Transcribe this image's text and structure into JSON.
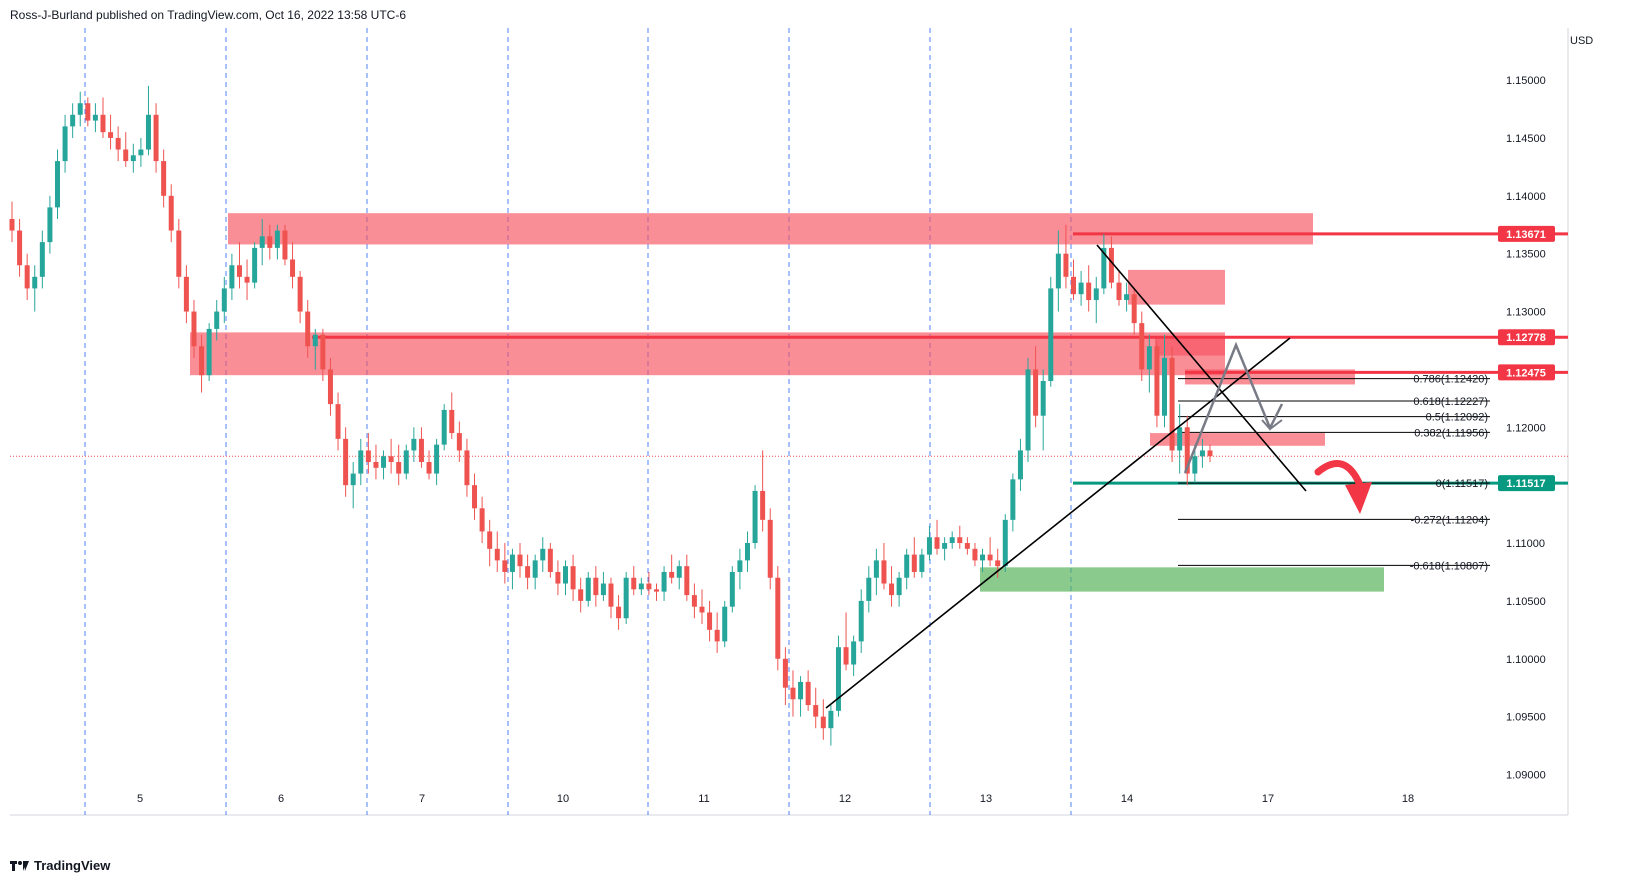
{
  "header": {
    "text": "Ross-J-Burland published on TradingView.com, Oct 16, 2022 13:58 UTC-6"
  },
  "footer": {
    "brand": "TradingView"
  },
  "colors": {
    "up": "#26a69a",
    "down": "#ef5350",
    "resistance": "#f23645",
    "resistance_zone": "#f7525f",
    "support": "#089981",
    "support_zone": "#4caf50",
    "grid": "#2962ff",
    "line": "#000000",
    "projection": "#787b86",
    "arrow": "#f23645"
  },
  "chart_data": {
    "type": "candlestick",
    "symbol_currency": "USD",
    "price_axis": {
      "ticks": [
        "1.09000",
        "1.09500",
        "1.10000",
        "1.10500",
        "1.11000",
        "1.11500",
        "1.12000",
        "1.12500",
        "1.13000",
        "1.13500",
        "1.14000",
        "1.14500",
        "1.15000"
      ],
      "min": 1.0865,
      "max": 1.1545
    },
    "time_axis": {
      "ticks": [
        "5",
        "6",
        "7",
        "10",
        "11",
        "12",
        "13",
        "14",
        "17",
        "18"
      ]
    },
    "session_separators": 10,
    "price_tags": [
      {
        "label": "1.13671",
        "value": 1.13671,
        "color": "#f23645"
      },
      {
        "label": "1.12778",
        "value": 1.12778,
        "color": "#f23645"
      },
      {
        "label": "1.12475",
        "value": 1.12475,
        "color": "#f23645"
      },
      {
        "label": "1.11517",
        "value": 1.11517,
        "color": "#089981"
      }
    ],
    "fibonacci": [
      {
        "label": "0.786(1.12420)",
        "value": 1.1242
      },
      {
        "label": "0.618(1.12227)",
        "value": 1.12227
      },
      {
        "label": "0.5(1.12092)",
        "value": 1.12092
      },
      {
        "label": "0.382(1.11956)",
        "value": 1.11956
      },
      {
        "label": "0(1.11517)",
        "value": 1.11517
      },
      {
        "label": "-0.272(1.11204)",
        "value": 1.11204
      },
      {
        "label": "-0.618(1.10807)",
        "value": 1.10807
      }
    ],
    "last_price": 1.1175,
    "candles": [
      [
        1.138,
        1.1395,
        1.136,
        1.137
      ],
      [
        1.137,
        1.138,
        1.133,
        1.134
      ],
      [
        1.134,
        1.135,
        1.131,
        1.132
      ],
      [
        1.132,
        1.134,
        1.13,
        1.133
      ],
      [
        1.133,
        1.137,
        1.132,
        1.136
      ],
      [
        1.136,
        1.14,
        1.135,
        1.139
      ],
      [
        1.139,
        1.144,
        1.138,
        1.143
      ],
      [
        1.143,
        1.147,
        1.142,
        1.146
      ],
      [
        1.146,
        1.148,
        1.145,
        1.147
      ],
      [
        1.147,
        1.149,
        1.146,
        1.148
      ],
      [
        1.148,
        1.1485,
        1.146,
        1.1465
      ],
      [
        1.1465,
        1.148,
        1.1455,
        1.147
      ],
      [
        1.147,
        1.1485,
        1.145,
        1.1455
      ],
      [
        1.1455,
        1.147,
        1.144,
        1.145
      ],
      [
        1.145,
        1.146,
        1.143,
        1.144
      ],
      [
        1.144,
        1.1455,
        1.1425,
        1.143
      ],
      [
        1.143,
        1.1445,
        1.142,
        1.1435
      ],
      [
        1.1435,
        1.145,
        1.1425,
        1.144
      ],
      [
        1.144,
        1.1495,
        1.1435,
        1.147
      ],
      [
        1.147,
        1.148,
        1.142,
        1.143
      ],
      [
        1.143,
        1.144,
        1.139,
        1.14
      ],
      [
        1.14,
        1.141,
        1.136,
        1.137
      ],
      [
        1.137,
        1.138,
        1.132,
        1.133
      ],
      [
        1.133,
        1.134,
        1.129,
        1.13
      ],
      [
        1.13,
        1.131,
        1.126,
        1.127
      ],
      [
        1.127,
        1.128,
        1.123,
        1.1245
      ],
      [
        1.1245,
        1.129,
        1.124,
        1.1285
      ],
      [
        1.1285,
        1.131,
        1.1275,
        1.13
      ],
      [
        1.13,
        1.133,
        1.129,
        1.132
      ],
      [
        1.132,
        1.135,
        1.131,
        1.134
      ],
      [
        1.134,
        1.136,
        1.132,
        1.133
      ],
      [
        1.133,
        1.1345,
        1.131,
        1.1325
      ],
      [
        1.1325,
        1.136,
        1.132,
        1.1355
      ],
      [
        1.1355,
        1.138,
        1.134,
        1.1365
      ],
      [
        1.1365,
        1.1375,
        1.1345,
        1.1355
      ],
      [
        1.1355,
        1.1375,
        1.1345,
        1.137
      ],
      [
        1.137,
        1.1375,
        1.134,
        1.1345
      ],
      [
        1.1345,
        1.136,
        1.132,
        1.133
      ],
      [
        1.133,
        1.1335,
        1.129,
        1.13
      ],
      [
        1.13,
        1.131,
        1.126,
        1.127
      ],
      [
        1.127,
        1.1285,
        1.125,
        1.128
      ],
      [
        1.128,
        1.1285,
        1.124,
        1.125
      ],
      [
        1.125,
        1.126,
        1.121,
        1.122
      ],
      [
        1.122,
        1.123,
        1.118,
        1.119
      ],
      [
        1.119,
        1.12,
        1.114,
        1.115
      ],
      [
        1.115,
        1.117,
        1.113,
        1.116
      ],
      [
        1.116,
        1.119,
        1.115,
        1.118
      ],
      [
        1.118,
        1.1195,
        1.116,
        1.117
      ],
      [
        1.117,
        1.1185,
        1.1155,
        1.1165
      ],
      [
        1.1165,
        1.118,
        1.1155,
        1.1175
      ],
      [
        1.1175,
        1.119,
        1.116,
        1.117
      ],
      [
        1.117,
        1.1185,
        1.115,
        1.116
      ],
      [
        1.116,
        1.1185,
        1.1155,
        1.118
      ],
      [
        1.118,
        1.12,
        1.117,
        1.119
      ],
      [
        1.119,
        1.12,
        1.1165,
        1.117
      ],
      [
        1.117,
        1.118,
        1.1155,
        1.116
      ],
      [
        1.116,
        1.119,
        1.115,
        1.1185
      ],
      [
        1.1185,
        1.122,
        1.118,
        1.1215
      ],
      [
        1.1215,
        1.123,
        1.119,
        1.1195
      ],
      [
        1.1195,
        1.1205,
        1.117,
        1.118
      ],
      [
        1.118,
        1.119,
        1.114,
        1.115
      ],
      [
        1.115,
        1.116,
        1.112,
        1.113
      ],
      [
        1.113,
        1.114,
        1.11,
        1.111
      ],
      [
        1.111,
        1.112,
        1.108,
        1.1095
      ],
      [
        1.1095,
        1.111,
        1.1075,
        1.1085
      ],
      [
        1.1085,
        1.11,
        1.1065,
        1.1075
      ],
      [
        1.1075,
        1.1095,
        1.106,
        1.109
      ],
      [
        1.109,
        1.11,
        1.107,
        1.108
      ],
      [
        1.108,
        1.109,
        1.106,
        1.107
      ],
      [
        1.107,
        1.109,
        1.106,
        1.1085
      ],
      [
        1.1085,
        1.1105,
        1.1075,
        1.1095
      ],
      [
        1.1095,
        1.11,
        1.107,
        1.1075
      ],
      [
        1.1075,
        1.1085,
        1.1055,
        1.1065
      ],
      [
        1.1065,
        1.1085,
        1.1055,
        1.108
      ],
      [
        1.108,
        1.109,
        1.105,
        1.106
      ],
      [
        1.106,
        1.107,
        1.104,
        1.105
      ],
      [
        1.105,
        1.1075,
        1.1045,
        1.107
      ],
      [
        1.107,
        1.108,
        1.1045,
        1.1055
      ],
      [
        1.1055,
        1.1075,
        1.105,
        1.1065
      ],
      [
        1.1065,
        1.107,
        1.1035,
        1.1045
      ],
      [
        1.1045,
        1.1055,
        1.1025,
        1.1035
      ],
      [
        1.1035,
        1.1075,
        1.103,
        1.107
      ],
      [
        1.107,
        1.108,
        1.1055,
        1.106
      ],
      [
        1.106,
        1.107,
        1.1055,
        1.1065
      ],
      [
        1.1065,
        1.1075,
        1.1055,
        1.106
      ],
      [
        1.106,
        1.1065,
        1.105,
        1.1058
      ],
      [
        1.1058,
        1.108,
        1.105,
        1.1075
      ],
      [
        1.1075,
        1.109,
        1.1065,
        1.107
      ],
      [
        1.107,
        1.1085,
        1.106,
        1.108
      ],
      [
        1.108,
        1.109,
        1.105,
        1.1055
      ],
      [
        1.1055,
        1.1065,
        1.1035,
        1.1045
      ],
      [
        1.1045,
        1.106,
        1.103,
        1.104
      ],
      [
        1.104,
        1.105,
        1.1015,
        1.1025
      ],
      [
        1.1025,
        1.104,
        1.1005,
        1.1015
      ],
      [
        1.1015,
        1.105,
        1.101,
        1.1045
      ],
      [
        1.1045,
        1.108,
        1.104,
        1.1075
      ],
      [
        1.1075,
        1.1095,
        1.106,
        1.1085
      ],
      [
        1.1085,
        1.111,
        1.1075,
        1.11
      ],
      [
        1.11,
        1.115,
        1.1095,
        1.1145
      ],
      [
        1.1145,
        1.118,
        1.111,
        1.112
      ],
      [
        1.112,
        1.113,
        1.106,
        1.107
      ],
      [
        1.107,
        1.108,
        1.099,
        1.1
      ],
      [
        1.1,
        1.101,
        1.096,
        1.0975
      ],
      [
        1.0975,
        1.099,
        1.095,
        1.0965
      ],
      [
        1.0965,
        1.0985,
        1.095,
        1.098
      ],
      [
        1.098,
        1.099,
        1.0955,
        1.096
      ],
      [
        1.096,
        1.0975,
        1.094,
        1.095
      ],
      [
        1.095,
        1.0965,
        1.093,
        1.094
      ],
      [
        1.094,
        1.096,
        1.0925,
        1.0955
      ],
      [
        1.0955,
        1.102,
        1.095,
        1.101
      ],
      [
        1.101,
        1.104,
        1.099,
        1.0995
      ],
      [
        1.0995,
        1.102,
        1.0985,
        1.1015
      ],
      [
        1.1015,
        1.106,
        1.1005,
        1.105
      ],
      [
        1.105,
        1.108,
        1.104,
        1.107
      ],
      [
        1.107,
        1.1095,
        1.1055,
        1.1085
      ],
      [
        1.1085,
        1.11,
        1.106,
        1.1065
      ],
      [
        1.1065,
        1.108,
        1.1045,
        1.1055
      ],
      [
        1.1055,
        1.1075,
        1.1045,
        1.107
      ],
      [
        1.107,
        1.1095,
        1.106,
        1.109
      ],
      [
        1.109,
        1.1105,
        1.107,
        1.1075
      ],
      [
        1.1075,
        1.1095,
        1.107,
        1.109
      ],
      [
        1.109,
        1.1115,
        1.1085,
        1.1105
      ],
      [
        1.1105,
        1.112,
        1.109,
        1.1095
      ],
      [
        1.1095,
        1.1105,
        1.1085,
        1.11
      ],
      [
        1.11,
        1.111,
        1.1095,
        1.1105
      ],
      [
        1.1105,
        1.1115,
        1.1095,
        1.11
      ],
      [
        1.11,
        1.1105,
        1.109,
        1.1095
      ],
      [
        1.1095,
        1.11,
        1.108,
        1.1085
      ],
      [
        1.1085,
        1.1095,
        1.1075,
        1.109
      ],
      [
        1.109,
        1.1105,
        1.108,
        1.1085
      ],
      [
        1.1085,
        1.1095,
        1.107,
        1.108
      ],
      [
        1.108,
        1.1125,
        1.1075,
        1.112
      ],
      [
        1.112,
        1.116,
        1.111,
        1.1155
      ],
      [
        1.1155,
        1.119,
        1.1145,
        1.118
      ],
      [
        1.118,
        1.126,
        1.117,
        1.125
      ],
      [
        1.125,
        1.127,
        1.12,
        1.121
      ],
      [
        1.121,
        1.125,
        1.118,
        1.124
      ],
      [
        1.124,
        1.133,
        1.1235,
        1.132
      ],
      [
        1.132,
        1.137,
        1.13,
        1.135
      ],
      [
        1.135,
        1.1375,
        1.132,
        1.133
      ],
      [
        1.133,
        1.1345,
        1.131,
        1.1315
      ],
      [
        1.1315,
        1.1335,
        1.1305,
        1.1325
      ],
      [
        1.1325,
        1.134,
        1.13,
        1.131
      ],
      [
        1.131,
        1.133,
        1.129,
        1.132
      ],
      [
        1.132,
        1.1367,
        1.1315,
        1.1355
      ],
      [
        1.1355,
        1.1365,
        1.132,
        1.1325
      ],
      [
        1.1325,
        1.1335,
        1.1305,
        1.131
      ],
      [
        1.131,
        1.1325,
        1.13,
        1.1315
      ],
      [
        1.1315,
        1.132,
        1.128,
        1.129
      ],
      [
        1.129,
        1.13,
        1.124,
        1.125
      ],
      [
        1.125,
        1.128,
        1.123,
        1.127
      ],
      [
        1.127,
        1.1275,
        1.12,
        1.121
      ],
      [
        1.121,
        1.128,
        1.12,
        1.126
      ],
      [
        1.126,
        1.127,
        1.117,
        1.118
      ],
      [
        1.118,
        1.122,
        1.116,
        1.12
      ],
      [
        1.12,
        1.121,
        1.115,
        1.116
      ],
      [
        1.116,
        1.1185,
        1.1152,
        1.1175
      ],
      [
        1.1175,
        1.119,
        1.1165,
        1.118
      ],
      [
        1.118,
        1.1185,
        1.117,
        1.1175
      ]
    ],
    "zones": [
      {
        "name": "resistance-zone-top",
        "price_top": 1.1385,
        "price_bottom": 1.1358,
        "from_candle": 26,
        "to_x_day": 17.35
      },
      {
        "name": "resistance-zone-mid",
        "price_top": 1.1282,
        "price_bottom": 1.1245,
        "from_candle": 22,
        "to_x_day": 17.35
      }
    ]
  }
}
